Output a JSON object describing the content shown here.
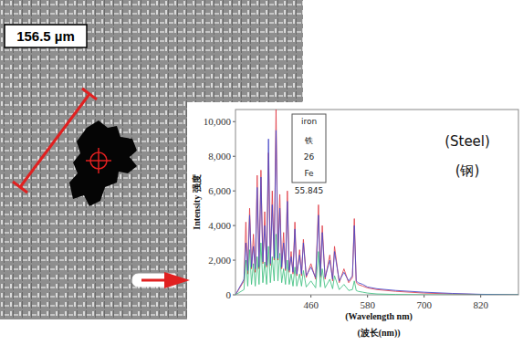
{
  "image": {
    "scale_label": "156.5 µm"
  },
  "chart_data": {
    "type": "line",
    "xlabel": [
      "(Wavelength nm)",
      "(波长(nm))"
    ],
    "ylabel": "Intensity 强度",
    "element_card": [
      "iron",
      "铁",
      "26",
      "Fe",
      "55.845"
    ],
    "annotations": [
      "(Steel)",
      "(钢)"
    ],
    "x": [
      300,
      318,
      322,
      326,
      330,
      334,
      338,
      342,
      346,
      350,
      354,
      358,
      362,
      366,
      370,
      374,
      378,
      382,
      386,
      390,
      394,
      398,
      402,
      406,
      410,
      414,
      418,
      422,
      426,
      430,
      436,
      440,
      444,
      450,
      460,
      470,
      476,
      480,
      484,
      490,
      500,
      506,
      510,
      520,
      530,
      540,
      548,
      552,
      556,
      560,
      570,
      580,
      600,
      640,
      700,
      760,
      820,
      900
    ],
    "series": [
      {
        "color": "#e0404a",
        "values": [
          0,
          800,
          4200,
          1200,
          5000,
          1500,
          3500,
          1300,
          6900,
          1500,
          7200,
          1800,
          4800,
          1600,
          8200,
          1700,
          6000,
          2000,
          10700,
          2000,
          5800,
          1500,
          3600,
          1400,
          6000,
          1300,
          2500,
          1200,
          4200,
          1100,
          2600,
          1100,
          3200,
          1000,
          1800,
          900,
          5200,
          1000,
          4000,
          900,
          2300,
          800,
          2800,
          700,
          1500,
          700,
          1000,
          4400,
          700,
          600,
          500,
          400,
          300,
          200,
          100,
          50,
          20,
          0
        ]
      },
      {
        "color": "#4848c8",
        "values": [
          0,
          900,
          3000,
          1400,
          4600,
          1600,
          2800,
          1500,
          6200,
          1600,
          6800,
          1900,
          4000,
          1700,
          9000,
          1800,
          5200,
          2100,
          9500,
          2100,
          5000,
          1600,
          3000,
          1500,
          5400,
          1400,
          2200,
          1300,
          3800,
          1200,
          2300,
          1200,
          3000,
          1100,
          1600,
          1000,
          4600,
          1100,
          3600,
          1000,
          2000,
          900,
          2500,
          800,
          1300,
          800,
          1100,
          4000,
          800,
          700,
          600,
          450,
          350,
          250,
          150,
          80,
          30,
          0
        ]
      },
      {
        "color": "#40c080",
        "values": [
          0,
          300,
          2000,
          500,
          2600,
          600,
          1800,
          500,
          2200,
          600,
          3000,
          700,
          1900,
          600,
          2800,
          700,
          2200,
          800,
          3500,
          800,
          2400,
          700,
          1500,
          600,
          2000,
          600,
          1200,
          500,
          1600,
          500,
          1200,
          500,
          1400,
          450,
          800,
          400,
          2500,
          450,
          1500,
          400,
          900,
          350,
          1100,
          300,
          600,
          250,
          300,
          800,
          250,
          200,
          150,
          100,
          50,
          20,
          0,
          0,
          0,
          0
        ]
      }
    ],
    "xlim": [
      300,
      900
    ],
    "xticks": [
      460,
      580,
      700,
      820
    ],
    "ylim": [
      0,
      10700
    ],
    "yticks": [
      0,
      {
        "value": 2000,
        "label": "2,000"
      },
      {
        "value": 4000,
        "label": "4,000"
      },
      {
        "value": 6000,
        "label": "6,000"
      },
      {
        "value": 8000,
        "label": "8,000"
      },
      {
        "value": 10000,
        "label": "10,000"
      }
    ],
    "grid": false
  }
}
